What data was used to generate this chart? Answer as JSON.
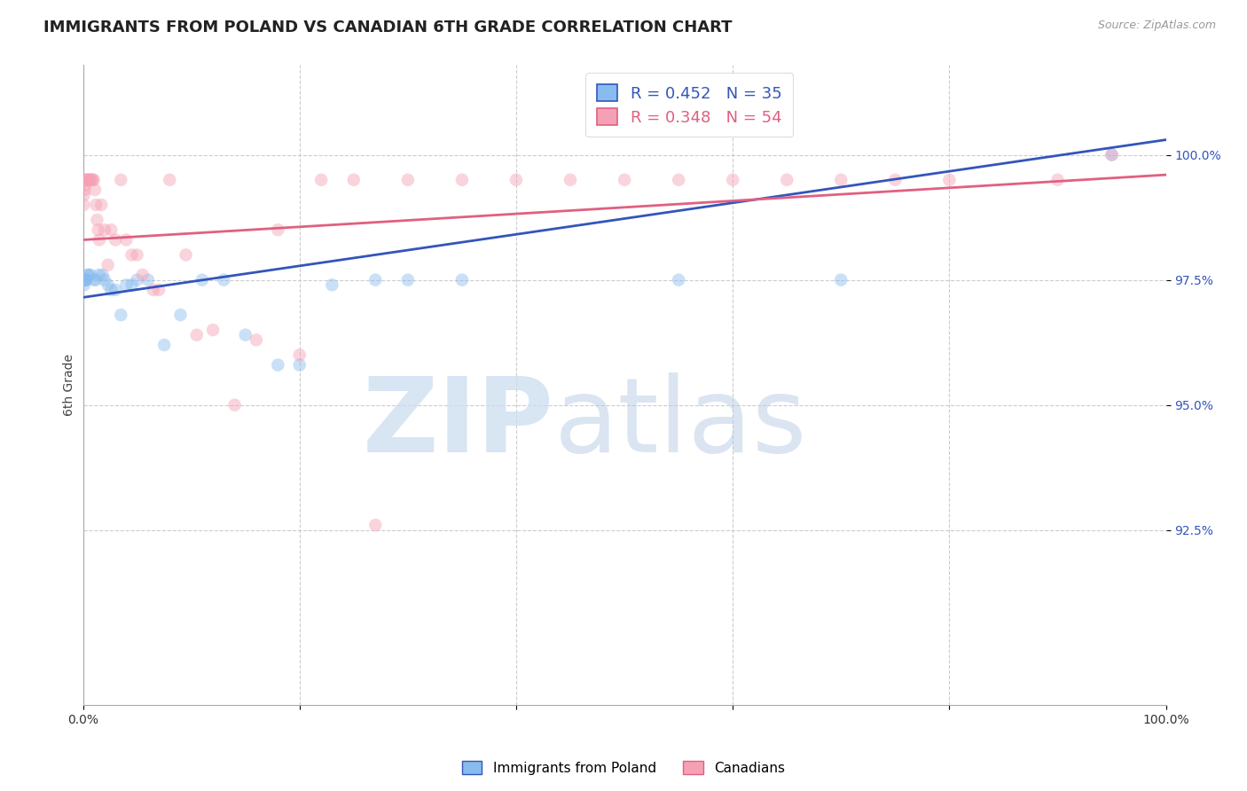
{
  "title": "IMMIGRANTS FROM POLAND VS CANADIAN 6TH GRADE CORRELATION CHART",
  "source": "Source: ZipAtlas.com",
  "ylabel": "6th Grade",
  "xlim": [
    0.0,
    100.0
  ],
  "ylim": [
    89.0,
    101.8
  ],
  "y_ticks": [
    92.5,
    95.0,
    97.5,
    100.0
  ],
  "y_tick_labels": [
    "92.5%",
    "95.0%",
    "97.5%",
    "100.0%"
  ],
  "x_ticks": [
    0,
    20,
    40,
    60,
    80,
    100
  ],
  "x_tick_labels": [
    "0.0%",
    "",
    "",
    "",
    "",
    "100.0%"
  ],
  "blue_R": 0.452,
  "blue_N": 35,
  "pink_R": 0.348,
  "pink_N": 54,
  "blue_color": "#88BBEE",
  "pink_color": "#F5A0B5",
  "blue_line_color": "#3355BB",
  "pink_line_color": "#E06080",
  "legend_label_blue": "Immigrants from Poland",
  "legend_label_pink": "Canadians",
  "blue_x": [
    0.1,
    0.15,
    0.2,
    0.25,
    0.3,
    0.4,
    0.5,
    0.7,
    1.0,
    1.2,
    1.5,
    1.8,
    2.0,
    2.3,
    2.6,
    3.0,
    3.5,
    4.0,
    4.5,
    5.0,
    6.0,
    7.5,
    9.0,
    11.0,
    13.0,
    15.0,
    18.0,
    20.0,
    23.0,
    27.0,
    30.0,
    35.0,
    55.0,
    70.0,
    95.0
  ],
  "blue_y": [
    97.4,
    97.5,
    97.5,
    97.5,
    97.5,
    97.6,
    97.6,
    97.6,
    97.5,
    97.5,
    97.6,
    97.6,
    97.5,
    97.4,
    97.3,
    97.3,
    96.8,
    97.4,
    97.4,
    97.5,
    97.5,
    96.2,
    96.8,
    97.5,
    97.5,
    96.4,
    95.8,
    95.8,
    97.4,
    97.5,
    97.5,
    97.5,
    97.5,
    97.5,
    100.0
  ],
  "pink_x": [
    0.05,
    0.1,
    0.15,
    0.2,
    0.25,
    0.3,
    0.4,
    0.5,
    0.6,
    0.7,
    0.8,
    0.9,
    1.0,
    1.1,
    1.2,
    1.3,
    1.4,
    1.5,
    1.7,
    2.0,
    2.3,
    2.6,
    3.0,
    3.5,
    4.0,
    4.5,
    5.0,
    5.5,
    6.5,
    7.0,
    8.0,
    9.5,
    10.5,
    12.0,
    14.0,
    16.0,
    18.0,
    20.0,
    22.0,
    25.0,
    27.0,
    30.0,
    35.0,
    40.0,
    45.0,
    50.0,
    55.0,
    60.0,
    65.0,
    70.0,
    75.0,
    80.0,
    90.0,
    95.0
  ],
  "pink_y": [
    99.0,
    99.2,
    99.3,
    99.4,
    99.5,
    99.5,
    99.5,
    99.5,
    99.5,
    99.5,
    99.5,
    99.5,
    99.5,
    99.3,
    99.0,
    98.7,
    98.5,
    98.3,
    99.0,
    98.5,
    97.8,
    98.5,
    98.3,
    99.5,
    98.3,
    98.0,
    98.0,
    97.6,
    97.3,
    97.3,
    99.5,
    98.0,
    96.4,
    96.5,
    95.0,
    96.3,
    98.5,
    96.0,
    99.5,
    99.5,
    92.6,
    99.5,
    99.5,
    99.5,
    99.5,
    99.5,
    99.5,
    99.5,
    99.5,
    99.5,
    99.5,
    99.5,
    99.5,
    100.0
  ],
  "blue_trend": [
    0.0,
    97.15,
    100.0,
    100.3
  ],
  "pink_trend": [
    0.0,
    98.3,
    100.0,
    99.6
  ],
  "background_color": "#FFFFFF",
  "grid_color": "#CCCCCC",
  "title_fontsize": 13,
  "axis_label_fontsize": 10,
  "tick_fontsize": 10,
  "legend_fontsize": 13,
  "marker_size": 110,
  "marker_alpha": 0.45,
  "line_width": 2.0
}
